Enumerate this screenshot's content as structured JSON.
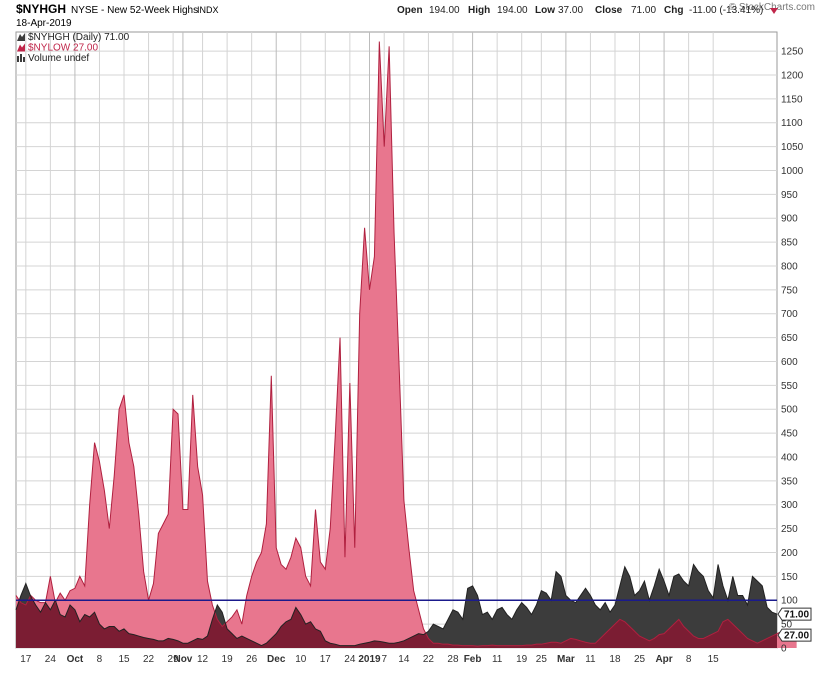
{
  "header": {
    "symbol": "$NYHGH",
    "description": "NYSE - New 52-Week Highs",
    "exchange": "INDX",
    "date": "18-Apr-2019",
    "brand": "© StockCharts.com",
    "ohlc": [
      {
        "label": "Open",
        "value": "194.00"
      },
      {
        "label": "High",
        "value": "194.00"
      },
      {
        "label": "Low",
        "value": "37.00"
      },
      {
        "label": "Close",
        "value": "71.00"
      },
      {
        "label": "Chg",
        "value": "-11.00 (-13.41%)"
      }
    ]
  },
  "legend": {
    "items": [
      {
        "text": "$NYHGH (Daily) 71.00",
        "color": "#3c3c3c"
      },
      {
        "text": "$NYLOW 27.00",
        "color": "#c0264a"
      },
      {
        "text": "Volume undef",
        "color": "#3c3c3c"
      }
    ]
  },
  "colors": {
    "highs_fill": "#3c3c3c",
    "lows_fill": "#e8768e",
    "lows_fill_overlap": "#7b1d33",
    "lows_line": "#b0203f",
    "ref_line": "#1a1a8c",
    "down_arrow": "#c0264a",
    "grid": "#d4d4d4"
  },
  "chart_data": {
    "type": "area",
    "ylim": [
      0,
      1290
    ],
    "y_ticks": [
      0,
      50,
      100,
      150,
      200,
      250,
      300,
      350,
      400,
      450,
      500,
      550,
      600,
      650,
      700,
      750,
      800,
      850,
      900,
      950,
      1000,
      1050,
      1100,
      1150,
      1200,
      1250
    ],
    "x_tick_labels": [
      "17",
      "24",
      "Oct",
      "8",
      "15",
      "22",
      "29",
      "Nov",
      "12",
      "19",
      "26",
      "Dec",
      "10",
      "17",
      "24",
      "2019",
      "7",
      "14",
      "22",
      "28",
      "Feb",
      "11",
      "19",
      "25",
      "Mar",
      "11",
      "18",
      "25",
      "Apr",
      "8",
      "15"
    ],
    "x_tick_positions": [
      2,
      7,
      12,
      17,
      22,
      27,
      32,
      34,
      38,
      43,
      48,
      53,
      58,
      63,
      68,
      72,
      75,
      79,
      84,
      89,
      93,
      98,
      103,
      107,
      112,
      117,
      122,
      127,
      132,
      137,
      142
    ],
    "x_bold_ticks": [
      "Oct",
      "Nov",
      "Dec",
      "2019",
      "Feb",
      "Mar",
      "Apr"
    ],
    "reference_line": 100,
    "last_value_labels": [
      {
        "series": "$NYHGH",
        "text": "71.00",
        "value": 71
      },
      {
        "series": "$NYLOW",
        "text": "27.00",
        "value": 27
      }
    ],
    "series": [
      {
        "name": "$NYHGH",
        "values": [
          80,
          110,
          135,
          108,
          90,
          75,
          95,
          80,
          100,
          70,
          65,
          90,
          80,
          55,
          70,
          65,
          75,
          50,
          40,
          45,
          45,
          35,
          40,
          30,
          28,
          25,
          22,
          20,
          18,
          15,
          15,
          20,
          18,
          15,
          10,
          10,
          15,
          20,
          18,
          25,
          60,
          90,
          75,
          40,
          30,
          20,
          25,
          20,
          15,
          10,
          5,
          10,
          20,
          30,
          45,
          55,
          60,
          85,
          70,
          50,
          55,
          40,
          35,
          15,
          10,
          8,
          5,
          5,
          5,
          5,
          8,
          10,
          12,
          15,
          14,
          12,
          10,
          10,
          12,
          15,
          20,
          25,
          30,
          28,
          35,
          50,
          45,
          40,
          60,
          80,
          75,
          60,
          125,
          130,
          110,
          70,
          75,
          60,
          80,
          85,
          70,
          60,
          80,
          95,
          85,
          70,
          90,
          120,
          115,
          100,
          160,
          150,
          110,
          100,
          95,
          110,
          125,
          110,
          90,
          80,
          95,
          75,
          90,
          130,
          170,
          150,
          110,
          120,
          140,
          100,
          130,
          165,
          140,
          110,
          150,
          155,
          140,
          130,
          175,
          160,
          150,
          120,
          105,
          175,
          130,
          100,
          150,
          110,
          110,
          90,
          150,
          140,
          130,
          85,
          75,
          71
        ],
        "fill": "#3c3c3c"
      },
      {
        "name": "$NYLOW",
        "values": [
          110,
          95,
          90,
          110,
          100,
          95,
          95,
          150,
          95,
          115,
          100,
          120,
          125,
          150,
          130,
          300,
          430,
          390,
          330,
          250,
          360,
          500,
          530,
          430,
          380,
          280,
          160,
          100,
          135,
          240,
          260,
          280,
          500,
          490,
          290,
          290,
          530,
          380,
          320,
          140,
          90,
          60,
          45,
          55,
          65,
          80,
          50,
          110,
          150,
          180,
          200,
          260,
          570,
          210,
          175,
          165,
          190,
          230,
          210,
          150,
          130,
          290,
          180,
          165,
          250,
          440,
          650,
          190,
          555,
          210,
          700,
          880,
          750,
          820,
          1270,
          1050,
          1260,
          870,
          600,
          310,
          210,
          120,
          80,
          40,
          20,
          10,
          10,
          8,
          8,
          6,
          6,
          5,
          5,
          5,
          4,
          5,
          5,
          6,
          5,
          5,
          5,
          5,
          5,
          5,
          6,
          6,
          8,
          8,
          10,
          12,
          12,
          10,
          15,
          20,
          18,
          15,
          12,
          10,
          10,
          20,
          30,
          40,
          50,
          60,
          55,
          45,
          35,
          25,
          20,
          15,
          20,
          28,
          30,
          40,
          50,
          60,
          45,
          35,
          25,
          20,
          20,
          25,
          30,
          35,
          55,
          60,
          50,
          40,
          30,
          20,
          15,
          10,
          15,
          20,
          25,
          30,
          35,
          40,
          35,
          27
        ],
        "fill": "#e8768e"
      }
    ]
  }
}
